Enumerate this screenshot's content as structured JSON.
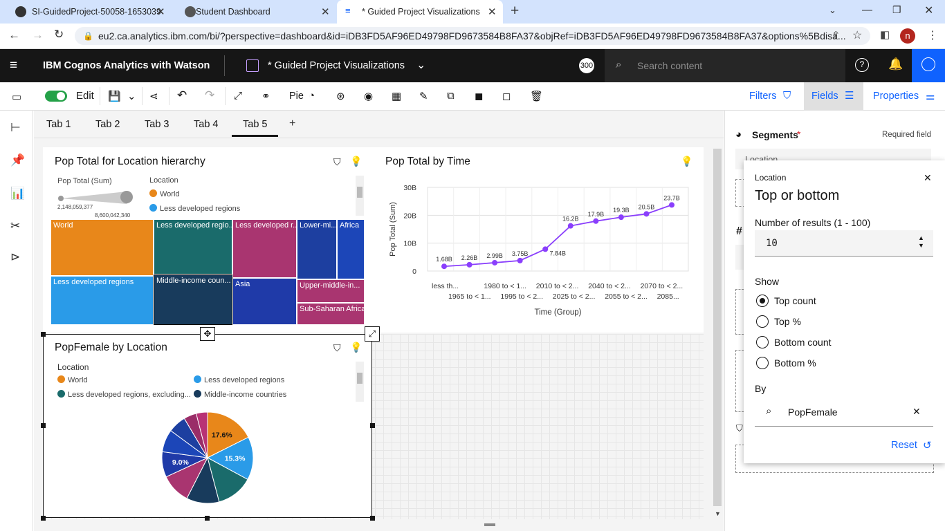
{
  "browser": {
    "tabs": [
      {
        "title": "SI-GuidedProject-50058-1653039"
      },
      {
        "title": "Student Dashboard"
      },
      {
        "title": "* Guided Project Visualizations"
      }
    ],
    "url": "eu2.ca.analytics.ibm.com/bi/?perspective=dashboard&id=iDB3FD5AF96ED49798FD9673584B8FA37&objRef=iDB3FD5AF96ED49798FD9673584B8FA37&options%5Bdisa...",
    "profile_initial": "n"
  },
  "app": {
    "product": "IBM Cognos Analytics with Watson",
    "dashboard_title": "* Guided Project Visualizations",
    "badge": "300",
    "search_placeholder": "Search content"
  },
  "toolbar": {
    "edit_label": "Edit",
    "pie_label": "Pie",
    "filters_label": "Filters",
    "fields_label": "Fields",
    "properties_label": "Properties"
  },
  "dashboard_tabs": [
    "Tab 1",
    "Tab 2",
    "Tab 3",
    "Tab 4",
    "Tab 5"
  ],
  "active_tab": "Tab 5",
  "treemap_widget": {
    "title": "Pop Total for Location hierarchy",
    "size_legend_title": "Pop Total (Sum)",
    "size_min": "2,148,059,377",
    "size_max": "8,600,042,340",
    "color_legend_title": "Location",
    "legend_items": [
      "World",
      "Less developed regions"
    ],
    "tiles": [
      "World",
      "Less developed regio...",
      "Less developed r...",
      "Lower-mi...",
      "Africa",
      "Less developed regions",
      "Middle-income coun...",
      "Asia",
      "Upper-middle-in...",
      "Sub-Saharan Africa"
    ]
  },
  "line_widget": {
    "title": "Pop Total by Time"
  },
  "pie_widget": {
    "title": "PopFemale by Location",
    "legend_title": "Location",
    "legend_items": [
      "World",
      "Less developed regions",
      "Less developed regions, excluding...",
      "Middle-income countries"
    ]
  },
  "chart_data": [
    {
      "type": "line",
      "title": "Pop Total by Time",
      "xlabel": "Time (Group)",
      "ylabel": "Pop Total (Sum)",
      "y_ticks": [
        "0",
        "10B",
        "20B",
        "30B"
      ],
      "ylim": [
        0,
        30
      ],
      "x_tick_labels_row1": [
        "less th...",
        "1980 to < 1...",
        "2010 to < 2...",
        "2040 to < 2...",
        "2070 to < 2..."
      ],
      "x_tick_labels_row2": [
        "1965 to < 1...",
        "1995 to < 2...",
        "2025 to < 2...",
        "2055 to < 2...",
        "2085..."
      ],
      "values": [
        1.68,
        2.26,
        2.99,
        3.75,
        7.84,
        16.2,
        17.9,
        19.3,
        20.5,
        23.7
      ],
      "data_labels": [
        "1.68B",
        "2.26B",
        "2.99B",
        "3.75B",
        "7.84B",
        "16.2B",
        "17.9B",
        "19.3B",
        "20.5B",
        "23.7B"
      ],
      "color": "#8a3ffc",
      "grid": true
    },
    {
      "type": "pie",
      "title": "PopFemale by Location",
      "slices": [
        {
          "name": "World",
          "value": 17.6,
          "color": "#e8871a",
          "label": "17.6%"
        },
        {
          "name": "Less developed regions",
          "value": 15.3,
          "color": "#2a9be8",
          "label": "15.3%"
        },
        {
          "name": "Less developed regions, excluding...",
          "value": 13.0,
          "color": "#1a6b6b"
        },
        {
          "name": "Middle-income countries",
          "value": 11.6,
          "color": "#183b5c"
        },
        {
          "name": "",
          "value": 10.6,
          "color": "#a93570"
        },
        {
          "name": "",
          "value": 9.0,
          "color": "#1f3aa8",
          "label": "9.0%"
        },
        {
          "name": "",
          "value": 8.0,
          "color": "#1c46b8"
        },
        {
          "name": "",
          "value": 6.4,
          "color": "#1d3fa0"
        },
        {
          "name": "",
          "value": 4.5,
          "color": "#9a2d68"
        },
        {
          "name": "",
          "value": 4.0,
          "color": "#b83275"
        }
      ]
    }
  ],
  "right_panel": {
    "segments_label": "Segments",
    "required_label": "Required field",
    "location_chip": "Location"
  },
  "popover": {
    "context": "Location",
    "title": "Top or bottom",
    "results_label": "Number of results (1 - 100)",
    "results_value": "10",
    "show_label": "Show",
    "options": [
      "Top count",
      "Top %",
      "Bottom count",
      "Bottom %"
    ],
    "selected_option": "Top count",
    "by_label": "By",
    "by_value": "PopFemale",
    "reset_label": "Reset"
  }
}
